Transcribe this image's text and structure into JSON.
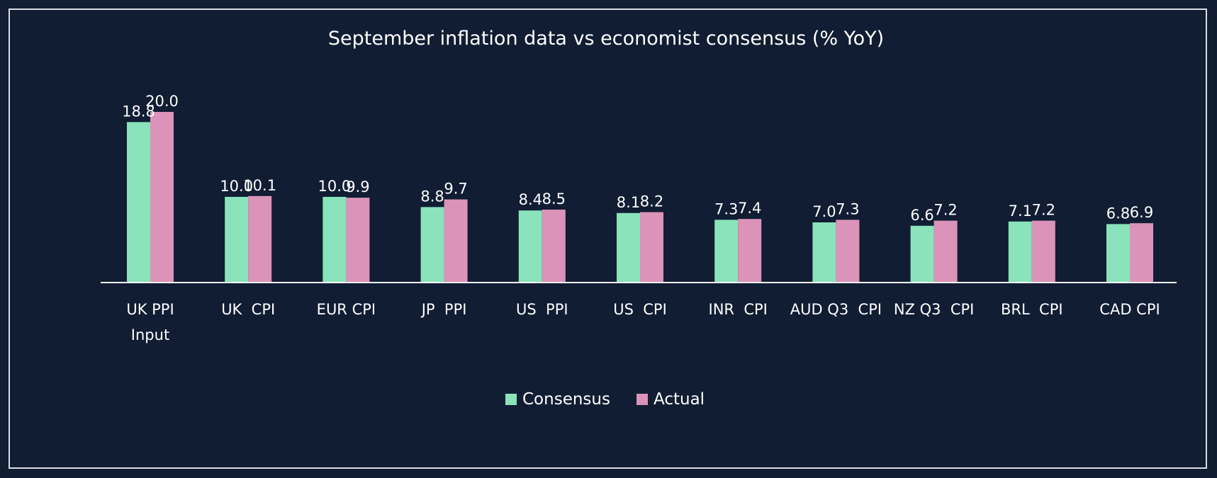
{
  "chart_data": {
    "type": "bar",
    "title": "September inflation data vs economist consensus (% YoY)",
    "xlabel": "",
    "ylabel": "",
    "ylim": [
      0,
      24
    ],
    "grid": false,
    "legend_position": "bottom",
    "categories": [
      [
        "UK PPI",
        "Input"
      ],
      [
        "UK  CPI"
      ],
      [
        "EUR CPI"
      ],
      [
        "JP  PPI"
      ],
      [
        "US  PPI"
      ],
      [
        "US  CPI"
      ],
      [
        "INR  CPI"
      ],
      [
        "AUD Q3  CPI"
      ],
      [
        "NZ Q3  CPI"
      ],
      [
        "BRL  CPI"
      ],
      [
        "CAD CPI"
      ]
    ],
    "series": [
      {
        "name": "Consensus",
        "color": "#8be3bb",
        "values": [
          18.8,
          10.0,
          10.0,
          8.8,
          8.4,
          8.1,
          7.3,
          7.0,
          6.6,
          7.1,
          6.8
        ],
        "labels": [
          "18.8",
          "10.0",
          "10.0",
          "8.8",
          "8.4",
          "8.1",
          "7.3",
          "7.0",
          "6.6",
          "7.1",
          "6.8"
        ]
      },
      {
        "name": "Actual",
        "color": "#dc93b9",
        "values": [
          20.0,
          10.1,
          9.9,
          9.7,
          8.5,
          8.2,
          7.4,
          7.3,
          7.2,
          7.2,
          6.9
        ],
        "labels": [
          "20.0",
          "10.1",
          "9.9",
          "9.7",
          "8.5",
          "8.2",
          "7.4",
          "7.3",
          "7.2",
          "7.2",
          "6.9"
        ]
      }
    ]
  }
}
